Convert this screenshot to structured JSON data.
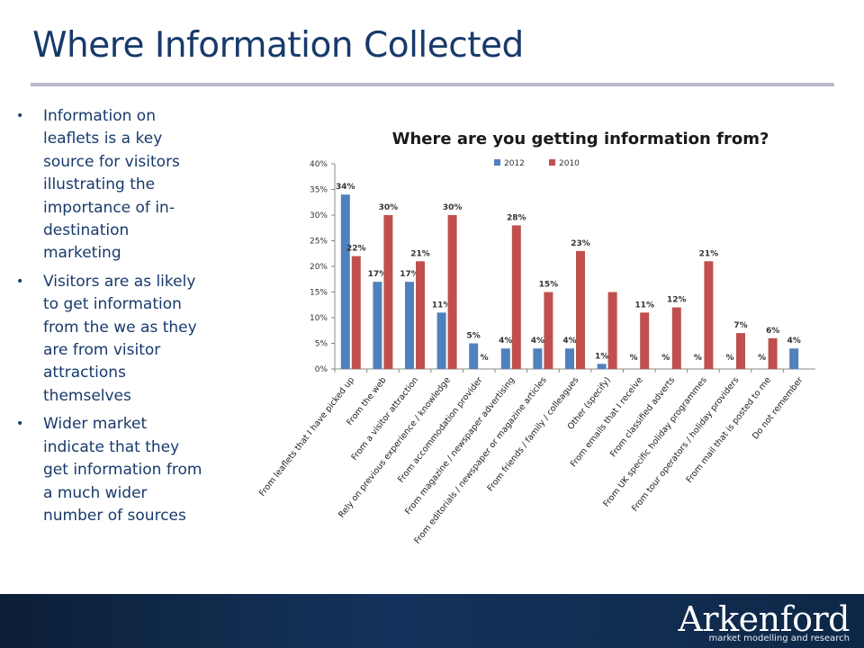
{
  "slide": {
    "title": "Where Information Collected",
    "bullets": [
      "Information on leaflets is a key source for visitors illustrating the importance of in-destination marketing",
      "Visitors are as likely to get information from the we as they are from visitor attractions themselves",
      "Wider market indicate that they get information from a much wider number of sources"
    ]
  },
  "logo": {
    "name": "Arkenford",
    "tagline": "market modelling and research"
  },
  "colors": {
    "title": "#173a6b",
    "series_2012": "#4f81bd",
    "series_2010": "#c0504d",
    "footer": "#14335c"
  },
  "chart_data": {
    "type": "bar",
    "title": "Where are you getting information from?",
    "ylim": [
      0,
      40
    ],
    "yticks": [
      "0%",
      "5%",
      "10%",
      "15%",
      "20%",
      "25%",
      "30%",
      "35%",
      "40%"
    ],
    "grid": false,
    "legend_position": "top",
    "categories": [
      "From leaflets that I have picked up",
      "From the web",
      "From a visitor attraction",
      "Rely on previous experience / knowledge",
      "From accommodation provider",
      "From magazine / newspaper advertising",
      "From editorials / newspaper or magazine articles",
      "From friends / family / colleagues",
      "Other (specify)",
      "From emails that I receive",
      "From classified adverts",
      "From UK specific holiday programmes",
      "From tour operators / holiday providers",
      "From mail that is posted to me",
      "Do not remember"
    ],
    "series": [
      {
        "name": "2012",
        "values": [
          34,
          17,
          17,
          11,
          5,
          4,
          4,
          4,
          1,
          0,
          0,
          0,
          0,
          0,
          4
        ],
        "labels": [
          "34%",
          "17%",
          "17%",
          "11%",
          "5%",
          "4%",
          "4%",
          "4%",
          "1%",
          "",
          "",
          "",
          "",
          "",
          "4%"
        ]
      },
      {
        "name": "2010",
        "values": [
          22,
          30,
          21,
          30,
          0,
          28,
          15,
          23,
          15,
          11,
          12,
          21,
          7,
          6,
          null
        ],
        "labels": [
          "22%",
          "30%",
          "21%",
          "30%",
          "%",
          "28%",
          "15%",
          "23%",
          "",
          "11%",
          "12%",
          "21%",
          "7%",
          "6%",
          ""
        ],
        "missing_labels": [
          "",
          "",
          "",
          "",
          "",
          "",
          "",
          "",
          "",
          "%",
          "%",
          "%",
          "%",
          "%",
          ""
        ]
      }
    ]
  }
}
